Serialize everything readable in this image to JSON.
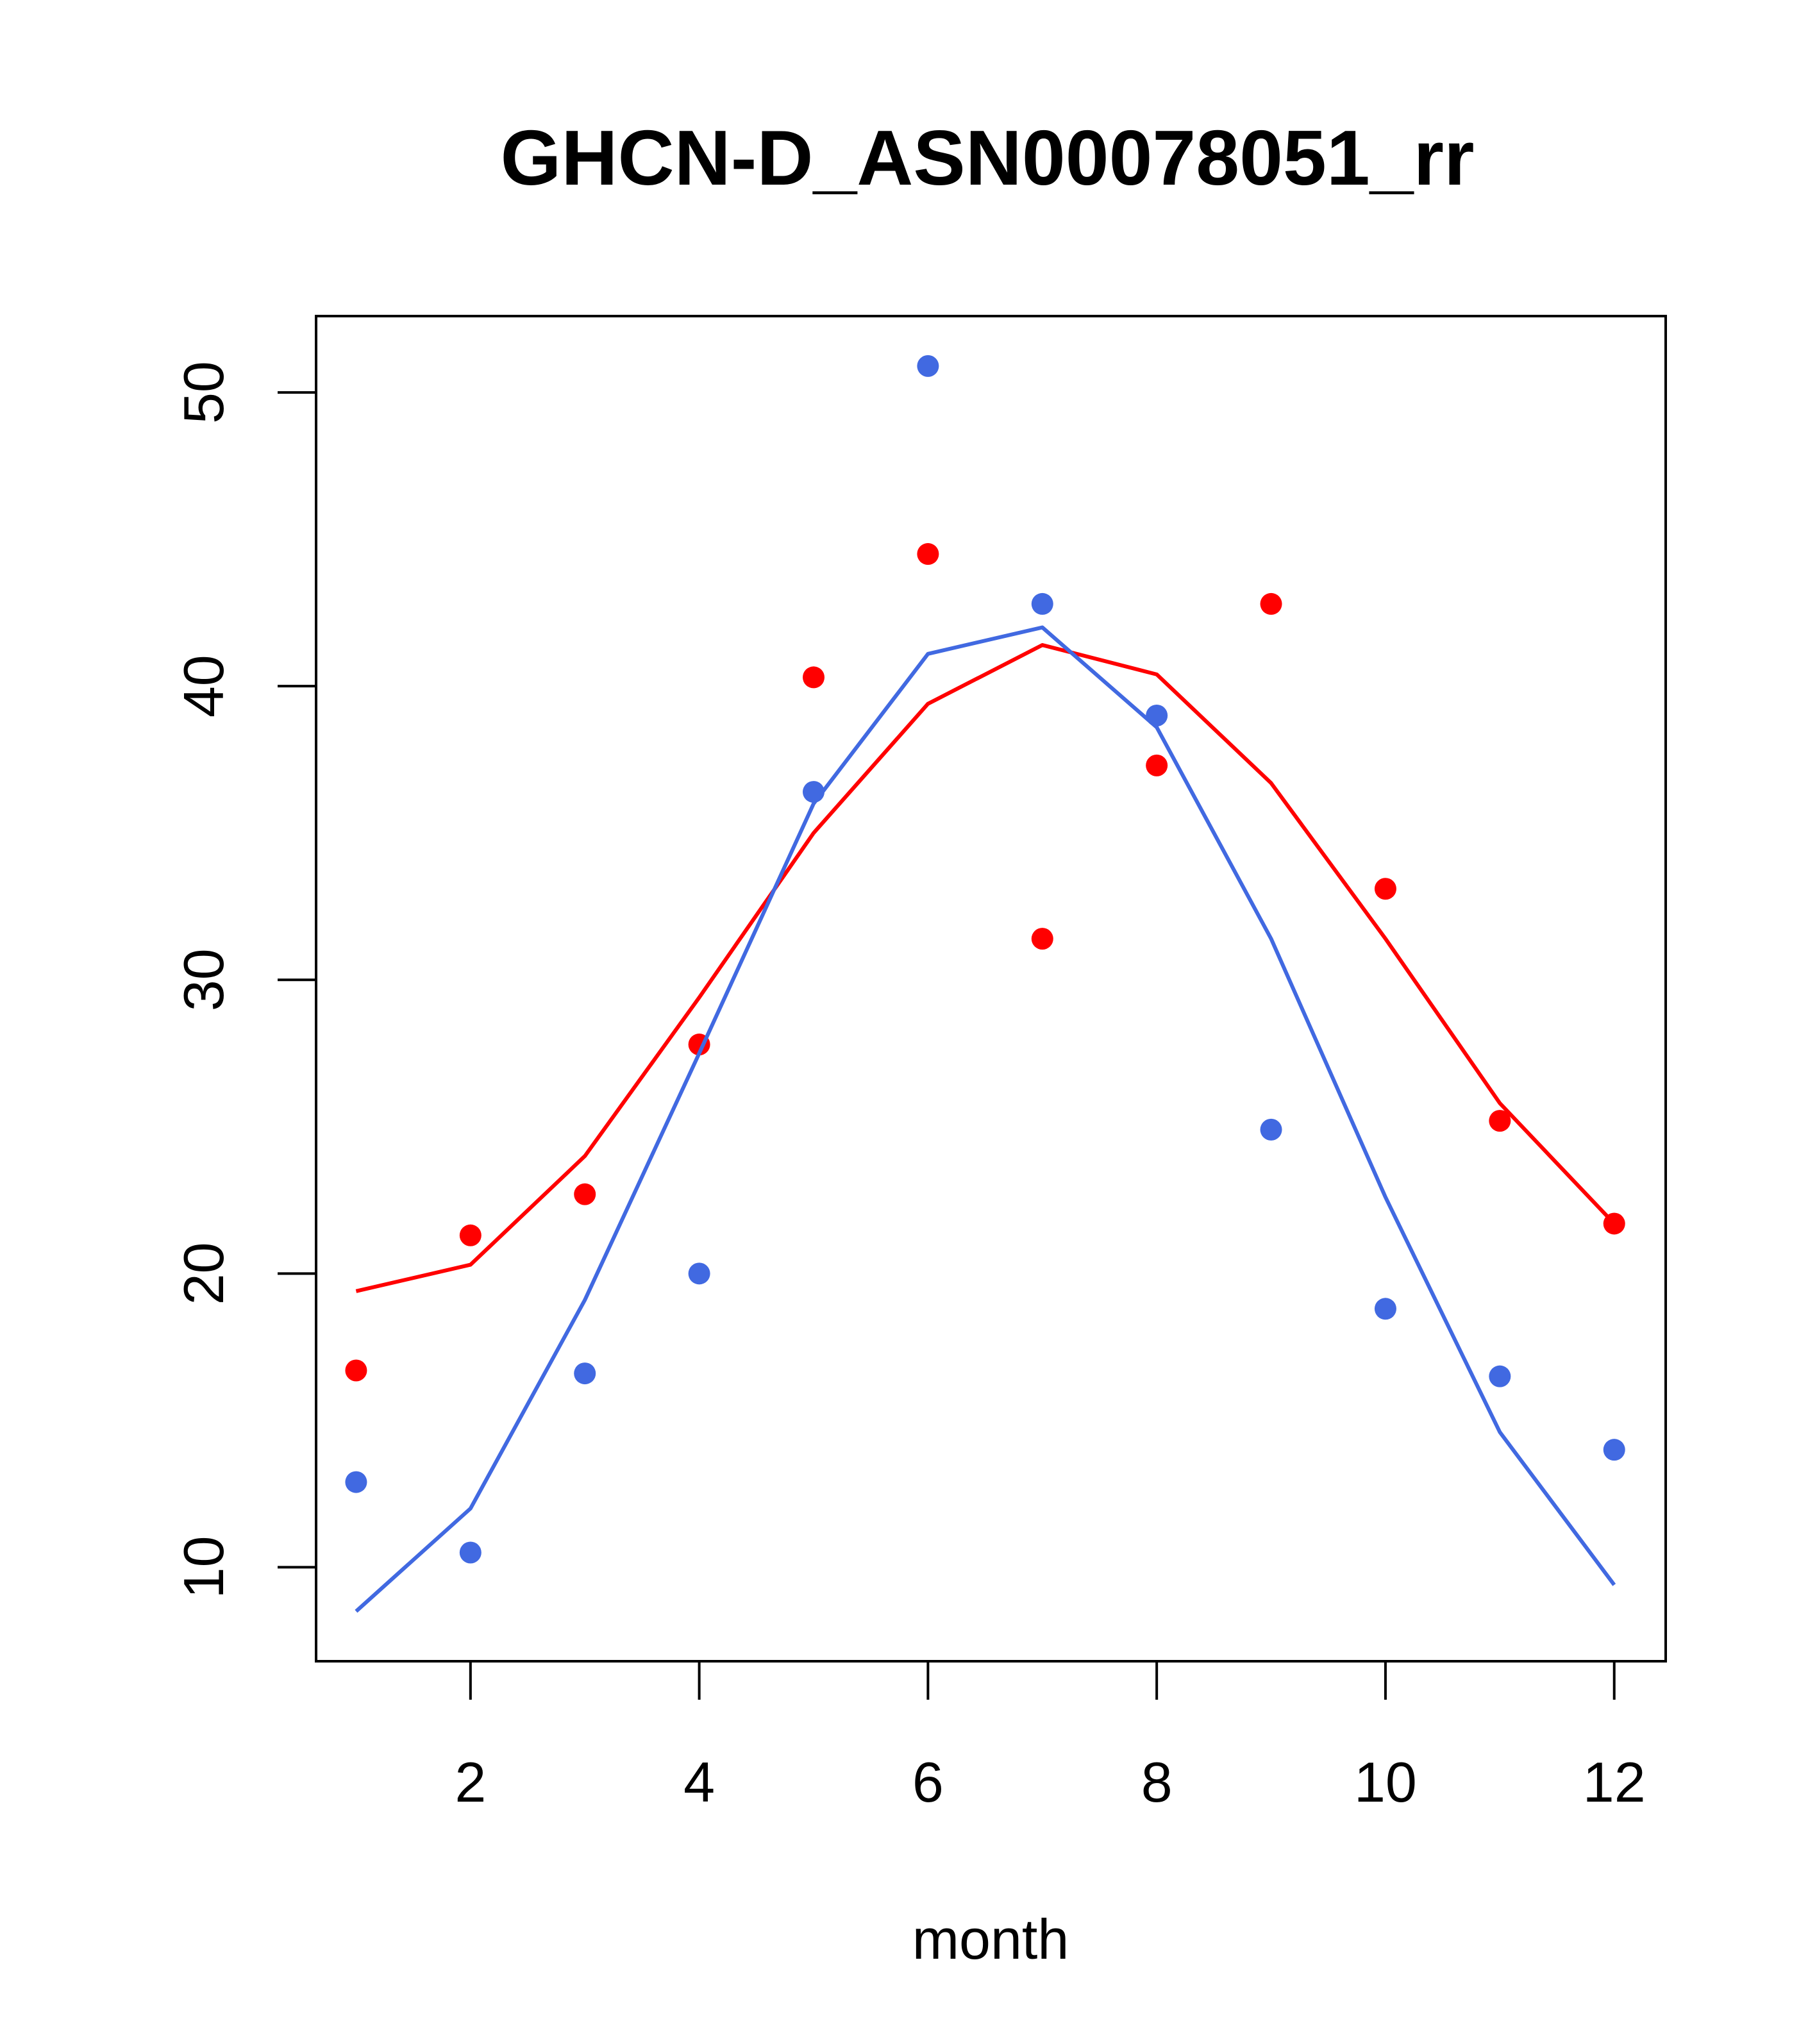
{
  "chart_data": {
    "type": "scatter",
    "title": "GHCN-D_ASN00078051_rr",
    "xlabel": "month",
    "ylabel": "",
    "xlim": [
      0.65,
      12.45
    ],
    "ylim": [
      6.8,
      52.6
    ],
    "xticks": [
      2,
      4,
      6,
      8,
      10,
      12
    ],
    "yticks": [
      10,
      20,
      30,
      40,
      50
    ],
    "grid": false,
    "series": [
      {
        "color": "#ff0000",
        "points_x": [
          1,
          2,
          3,
          4,
          5,
          6,
          7,
          8,
          9,
          10,
          11,
          12
        ],
        "points_y": [
          16.7,
          21.3,
          22.7,
          27.8,
          40.3,
          44.5,
          31.4,
          37.3,
          42.8,
          33.1,
          25.2,
          21.7
        ],
        "line_x": [
          1,
          2,
          3,
          4,
          5,
          6,
          7,
          8,
          9,
          10,
          11,
          12
        ],
        "line_y": [
          19.4,
          20.3,
          24.0,
          29.4,
          35.0,
          39.4,
          41.4,
          40.4,
          36.7,
          31.4,
          25.8,
          21.7
        ]
      },
      {
        "color": "#4169e1",
        "points_x": [
          1,
          2,
          3,
          4,
          5,
          6,
          7,
          8,
          9,
          10,
          11,
          12
        ],
        "points_y": [
          12.9,
          10.5,
          16.6,
          20.0,
          36.4,
          50.9,
          42.8,
          39.0,
          24.9,
          18.8,
          16.5,
          14.0
        ],
        "line_x": [
          1,
          2,
          3,
          4,
          5,
          6,
          7,
          8,
          9,
          10,
          11,
          12
        ],
        "line_y": [
          8.5,
          12.0,
          19.1,
          27.5,
          36.0,
          41.1,
          42.0,
          38.6,
          31.4,
          22.6,
          14.6,
          9.4
        ]
      }
    ]
  }
}
